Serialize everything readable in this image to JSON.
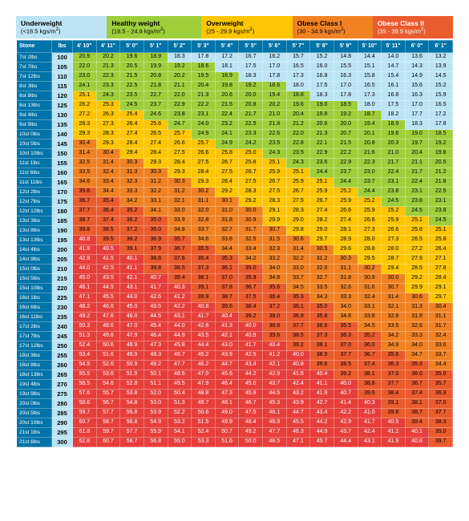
{
  "categories": [
    {
      "title": "Underweight",
      "range": "(<18.5 kgs/m²)",
      "color": "#bce4f5",
      "text": "#000",
      "flex": 2.3
    },
    {
      "title": "Healthy weight",
      "range": "(18.5 - 24.9 kgs/m²)",
      "color": "#9fce3b",
      "text": "#000",
      "flex": 2.4
    },
    {
      "title": "Overweight",
      "range": "(25 - 29.9 kgs/m²)",
      "color": "#fdc600",
      "text": "#000",
      "flex": 2.3
    },
    {
      "title": "Obese Class I",
      "range": "(30 - 34.9 kgs/m²)",
      "color": "#f08223",
      "text": "#000",
      "flex": 2
    },
    {
      "title": "Obese Class II",
      "range": "(35 - 39.9 kgs/m²)",
      "color": "#ea5b2e",
      "text": "#fff",
      "flex": 2
    }
  ],
  "headers": {
    "stone": "Stone",
    "lbs": "lbs",
    "heights": [
      "4' 10\"",
      "4' 11\"",
      "5' 0\"",
      "5' 1\"",
      "5' 2\"",
      "5' 3\"",
      "5' 4\"",
      "5' 5\"",
      "5' 6\"",
      "5' 7\"",
      "5' 8\"",
      "5' 9\"",
      "5' 10\"",
      "5' 11\"",
      "6' 0\"",
      "6' 1\""
    ]
  },
  "palette": {
    "uw": "#bce4f5",
    "hw": "#9fce3b",
    "ow": "#fdc600",
    "o1": "#f08223",
    "o2": "#ea5b2e",
    "o3": "#e63e3a"
  },
  "rows": [
    {
      "stone": "7st 2lbs",
      "lbs": 100,
      "bmi": [
        20.9,
        20.2,
        19.6,
        18.9,
        18.3,
        17.8,
        17.2,
        16.7,
        16.2,
        15.7,
        15.2,
        14.8,
        14.4,
        14.0,
        13.6,
        13.2
      ]
    },
    {
      "stone": "7st 7lbs",
      "lbs": 105,
      "bmi": [
        22.0,
        21.3,
        20.5,
        19.9,
        19.2,
        18.6,
        18.1,
        17.5,
        17.0,
        16.5,
        16.0,
        15.5,
        15.1,
        14.7,
        14.3,
        13.9
      ]
    },
    {
      "stone": "7st 12lbs",
      "lbs": 110,
      "bmi": [
        23.0,
        22.3,
        21.5,
        20.8,
        20.2,
        19.5,
        18.9,
        18.3,
        17.8,
        17.3,
        16.8,
        16.3,
        15.8,
        15.4,
        14.9,
        14.5
      ]
    },
    {
      "stone": "8st 3lbs",
      "lbs": 115,
      "bmi": [
        24.1,
        23.3,
        22.5,
        21.8,
        21.1,
        20.4,
        19.8,
        19.2,
        18.6,
        18.0,
        17.5,
        17.0,
        16.5,
        16.1,
        15.6,
        15.2
      ]
    },
    {
      "stone": "8st 8lbs",
      "lbs": 120,
      "bmi": [
        25.1,
        24.3,
        23.5,
        22.7,
        22.0,
        21.3,
        20.6,
        20.0,
        19.4,
        18.8,
        18.3,
        17.8,
        17.3,
        16.8,
        16.3,
        15.9
      ]
    },
    {
      "stone": "8st 13lbs",
      "lbs": 125,
      "bmi": [
        26.2,
        25.3,
        24.5,
        23.7,
        22.9,
        22.2,
        21.5,
        20.8,
        20.2,
        19.6,
        19.0,
        18.5,
        18.0,
        17.5,
        17.0,
        16.5
      ]
    },
    {
      "stone": "9st 4lbs",
      "lbs": 130,
      "bmi": [
        27.2,
        26.3,
        25.4,
        24.6,
        23.8,
        23.1,
        22.4,
        21.7,
        21.0,
        20.4,
        19.8,
        19.2,
        18.7,
        18.2,
        17.7,
        17.2
      ]
    },
    {
      "stone": "9st 9lbs",
      "lbs": 135,
      "bmi": [
        28.3,
        27.3,
        26.4,
        25.6,
        24.7,
        24.0,
        23.2,
        22.5,
        21.8,
        21.2,
        20.6,
        20.0,
        19.4,
        18.9,
        18.3,
        17.8
      ]
    },
    {
      "stone": "10st 0lbs",
      "lbs": 140,
      "bmi": [
        29.3,
        28.3,
        27.4,
        26.5,
        25.7,
        24.9,
        24.1,
        23.3,
        22.6,
        22.0,
        21.3,
        20.7,
        20.1,
        19.6,
        19.0,
        18.5
      ]
    },
    {
      "stone": "10st 5lbs",
      "lbs": 145,
      "bmi": [
        30.4,
        29.3,
        28.4,
        27.4,
        26.6,
        25.7,
        24.9,
        24.2,
        23.5,
        22.8,
        22.1,
        21.5,
        20.8,
        20.3,
        19.7,
        19.2
      ]
    },
    {
      "stone": "10st 10lbs",
      "lbs": 150,
      "bmi": [
        31.4,
        30.4,
        29.4,
        28.4,
        27.5,
        26.6,
        25.8,
        25.0,
        24.3,
        23.5,
        22.9,
        22.2,
        21.6,
        21.0,
        20.4,
        19.8
      ]
    },
    {
      "stone": "11st 1lbs",
      "lbs": 155,
      "bmi": [
        32.5,
        31.4,
        30.3,
        29.3,
        28.4,
        27.5,
        26.7,
        25.8,
        25.1,
        24.3,
        23.6,
        22.9,
        22.3,
        21.7,
        21.1,
        20.5
      ]
    },
    {
      "stone": "11st 6lbs",
      "lbs": 160,
      "bmi": [
        33.5,
        32.4,
        31.3,
        30.3,
        29.3,
        28.4,
        27.5,
        26.7,
        25.9,
        25.1,
        24.4,
        23.7,
        23.0,
        22.4,
        21.7,
        21.2
      ]
    },
    {
      "stone": "11st 11lbs",
      "lbs": 165,
      "bmi": [
        34.6,
        33.4,
        32.3,
        31.2,
        30.3,
        29.3,
        28.4,
        27.5,
        26.7,
        25.9,
        25.1,
        24.4,
        23.7,
        23.1,
        22.4,
        21.8
      ]
    },
    {
      "stone": "12st 2lbs",
      "lbs": 170,
      "bmi": [
        35.6,
        34.4,
        33.3,
        32.2,
        31.2,
        30.2,
        29.2,
        28.3,
        27.5,
        26.7,
        25.9,
        25.2,
        24.4,
        23.8,
        23.1,
        22.5
      ]
    },
    {
      "stone": "12st 7lbs",
      "lbs": 175,
      "bmi": [
        36.7,
        35.4,
        34.2,
        33.1,
        32.1,
        31.1,
        30.1,
        29.2,
        28.3,
        27.5,
        26.7,
        25.9,
        25.2,
        24.5,
        23.8,
        23.1
      ]
    },
    {
      "stone": "12st 12lbs",
      "lbs": 180,
      "bmi": [
        37.7,
        36.4,
        35.2,
        34.1,
        33.0,
        32.0,
        31.0,
        30.0,
        29.1,
        28.3,
        27.4,
        26.6,
        25.9,
        25.2,
        24.5,
        23.8
      ]
    },
    {
      "stone": "13st 3lbs",
      "lbs": 185,
      "bmi": [
        38.7,
        37.4,
        36.2,
        35.0,
        33.9,
        32.8,
        31.8,
        30.9,
        29.9,
        29.0,
        28.2,
        27.4,
        26.6,
        25.9,
        25.1,
        24.5
      ]
    },
    {
      "stone": "13st 8lbs",
      "lbs": 190,
      "bmi": [
        39.8,
        38.5,
        37.2,
        36.0,
        34.8,
        33.7,
        32.7,
        31.7,
        30.7,
        29.8,
        29.0,
        28.1,
        27.3,
        26.6,
        25.8,
        25.1
      ]
    },
    {
      "stone": "13st 13lbs",
      "lbs": 195,
      "bmi": [
        40.8,
        39.5,
        38.2,
        36.9,
        35.7,
        34.6,
        33.6,
        32.5,
        31.5,
        30.6,
        29.7,
        28.9,
        28.0,
        27.3,
        26.5,
        25.8
      ]
    },
    {
      "stone": "14st 4lbs",
      "lbs": 200,
      "bmi": [
        41.9,
        40.5,
        39.1,
        37.9,
        36.7,
        35.5,
        34.4,
        33.4,
        32.3,
        31.4,
        30.5,
        29.6,
        28.8,
        28.0,
        27.2,
        26.4
      ]
    },
    {
      "stone": "14st 9lbs",
      "lbs": 205,
      "bmi": [
        42.9,
        41.5,
        40.1,
        38.8,
        37.6,
        36.4,
        35.3,
        34.2,
        33.2,
        32.2,
        31.2,
        30.3,
        29.5,
        28.7,
        27.9,
        27.1
      ]
    },
    {
      "stone": "15st 0lbs",
      "lbs": 210,
      "bmi": [
        44.0,
        42.5,
        41.1,
        39.8,
        38.5,
        37.3,
        36.1,
        35.0,
        34.0,
        33.0,
        32.0,
        31.1,
        30.2,
        29.4,
        28.5,
        27.8
      ]
    },
    {
      "stone": "15st 5lbs",
      "lbs": 215,
      "bmi": [
        45.0,
        43.5,
        42.1,
        40.7,
        39.4,
        38.1,
        37.0,
        35.9,
        34.8,
        33.7,
        32.7,
        31.8,
        30.9,
        30.0,
        29.2,
        28.4
      ]
    },
    {
      "stone": "15st 10lbs",
      "lbs": 220,
      "bmi": [
        46.1,
        44.5,
        43.1,
        41.7,
        40.3,
        39.1,
        37.8,
        36.7,
        35.6,
        34.5,
        33.5,
        32.6,
        31.6,
        30.7,
        29.9,
        29.1
      ]
    },
    {
      "stone": "16st 1lbs",
      "lbs": 225,
      "bmi": [
        47.1,
        45.5,
        44.0,
        42.6,
        41.2,
        39.9,
        38.7,
        37.5,
        36.4,
        35.3,
        34.3,
        33.3,
        32.4,
        31.4,
        30.6,
        29.7
      ]
    },
    {
      "stone": "16st 6lbs",
      "lbs": 230,
      "bmi": [
        48.2,
        46.6,
        45.0,
        43.5,
        42.2,
        40.8,
        39.6,
        38.4,
        37.2,
        36.1,
        35.0,
        34.0,
        33.1,
        32.1,
        31.3,
        30.4
      ]
    },
    {
      "stone": "16st 11lbs",
      "lbs": 235,
      "bmi": [
        49.2,
        47.6,
        46.0,
        44.5,
        43.1,
        41.7,
        40.4,
        39.2,
        38.0,
        36.9,
        35.8,
        34.8,
        33.8,
        32.8,
        31.9,
        31.1
      ]
    },
    {
      "stone": "17st 2lbs",
      "lbs": 240,
      "bmi": [
        50.3,
        48.6,
        47.0,
        45.4,
        44.0,
        42.6,
        41.3,
        40.0,
        38.8,
        37.7,
        36.6,
        35.5,
        34.5,
        33.5,
        32.6,
        31.7
      ]
    },
    {
      "stone": "17st 7lbs",
      "lbs": 245,
      "bmi": [
        51.3,
        49.6,
        47.9,
        46.4,
        44.9,
        43.5,
        42.1,
        40.9,
        39.6,
        38.5,
        37.3,
        36.3,
        35.2,
        34.2,
        33.3,
        32.4
      ]
    },
    {
      "stone": "17st 12lbs",
      "lbs": 250,
      "bmi": [
        52.4,
        50.6,
        48.9,
        47.3,
        45.8,
        44.4,
        43.0,
        41.7,
        40.4,
        39.2,
        38.1,
        37.0,
        36.0,
        34.9,
        34.0,
        33.0
      ]
    },
    {
      "stone": "18st 3lbs",
      "lbs": 255,
      "bmi": [
        53.4,
        51.6,
        49.9,
        48.3,
        46.7,
        45.2,
        43.9,
        42.5,
        41.2,
        40.0,
        38.9,
        37.7,
        36.7,
        35.6,
        34.7,
        33.7
      ]
    },
    {
      "stone": "18st 8lbs",
      "lbs": 260,
      "bmi": [
        54.5,
        52.6,
        50.9,
        49.2,
        47.7,
        46.2,
        44.7,
        43.4,
        42.1,
        40.8,
        39.6,
        38.5,
        37.4,
        36.3,
        35.3,
        34.4
      ]
    },
    {
      "stone": "18st 13lbs",
      "lbs": 265,
      "bmi": [
        55.5,
        53.6,
        51.9,
        50.1,
        48.6,
        47.0,
        45.6,
        44.2,
        42.9,
        41.6,
        40.4,
        39.2,
        38.1,
        37.0,
        36.0,
        35.0
      ]
    },
    {
      "stone": "19st 4lbs",
      "lbs": 270,
      "bmi": [
        56.5,
        54.6,
        52.8,
        51.1,
        49.5,
        47.9,
        46.4,
        45.0,
        43.7,
        42.4,
        41.1,
        40.0,
        38.8,
        37.7,
        36.7,
        35.7
      ]
    },
    {
      "stone": "19st 9lbs",
      "lbs": 275,
      "bmi": [
        57.6,
        55.7,
        53.8,
        52.0,
        50.4,
        48.8,
        47.3,
        45.9,
        44.5,
        43.2,
        41.9,
        40.7,
        39.6,
        38.4,
        37.4,
        36.3
      ]
    },
    {
      "stone": "20st 0lbs",
      "lbs": 280,
      "bmi": [
        58.6,
        56.7,
        54.8,
        53.0,
        51.3,
        49.7,
        48.1,
        46.7,
        45.3,
        43.9,
        42.7,
        41.4,
        40.3,
        39.1,
        38.1,
        37.0
      ]
    },
    {
      "stone": "20st 5lbs",
      "lbs": 285,
      "bmi": [
        59.7,
        57.7,
        55.8,
        53.9,
        52.2,
        50.6,
        49.0,
        47.5,
        46.1,
        44.7,
        43.4,
        42.2,
        41.0,
        39.8,
        38.7,
        37.7
      ]
    },
    {
      "stone": "20st 10lbs",
      "lbs": 290,
      "bmi": [
        60.7,
        58.7,
        56.8,
        54.9,
        53.2,
        51.5,
        49.9,
        48.4,
        46.9,
        45.5,
        44.2,
        42.9,
        41.7,
        40.5,
        39.4,
        38.3
      ]
    },
    {
      "stone": "21st 1lbs",
      "lbs": 295,
      "bmi": [
        61.8,
        59.7,
        57.7,
        55.9,
        54.1,
        52.4,
        50.7,
        49.2,
        47.7,
        46.3,
        44.9,
        43.7,
        42.4,
        41.2,
        40.1,
        39.0
      ]
    },
    {
      "stone": "21st 6lbs",
      "lbs": 300,
      "bmi": [
        62.8,
        60.7,
        58.7,
        56.8,
        55.0,
        53.3,
        51.6,
        50.0,
        48.5,
        47.1,
        45.7,
        44.4,
        43.1,
        41.9,
        40.8,
        39.7
      ]
    }
  ]
}
